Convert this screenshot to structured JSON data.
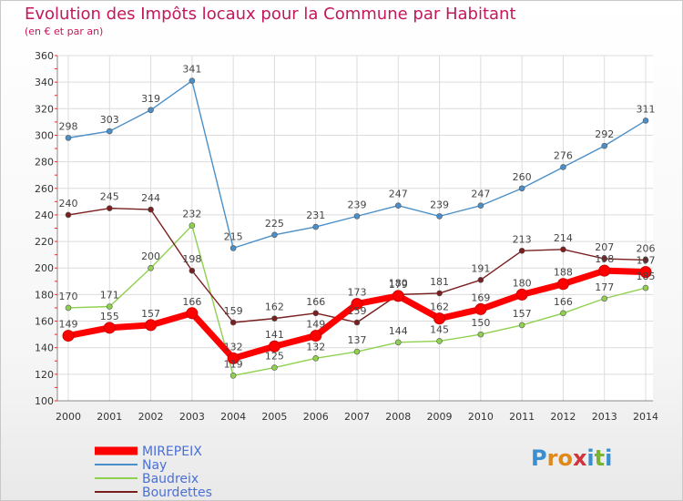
{
  "title": "Evolution des Impôts locaux pour la Commune par Habitant",
  "subtitle": "(en € et par an)",
  "brand": {
    "letters": [
      "P",
      "r",
      "o",
      "x",
      "i",
      "t",
      "i"
    ],
    "colors": [
      "#3a8fd0",
      "#e0891a",
      "#e0891a",
      "#d0343c",
      "#3a8fd0",
      "#7ab332",
      "#3a8fd0"
    ]
  },
  "chart_data": {
    "type": "line",
    "categories": [
      "2000",
      "2001",
      "2002",
      "2003",
      "2004",
      "2005",
      "2006",
      "2007",
      "2008",
      "2009",
      "2010",
      "2011",
      "2012",
      "2013",
      "2014"
    ],
    "ylim": [
      100,
      360
    ],
    "yticks": [
      100,
      120,
      140,
      160,
      180,
      200,
      220,
      240,
      260,
      280,
      300,
      320,
      340,
      360
    ],
    "grid": true,
    "legend_position": "bottom-left",
    "series": [
      {
        "name": "MIREPEIX",
        "color": "#ff0000",
        "values": [
          149,
          155,
          157,
          166,
          132,
          141,
          149,
          173,
          179,
          162,
          169,
          180,
          188,
          198,
          197
        ]
      },
      {
        "name": "Nay",
        "color": "#4a8fc9",
        "values": [
          298,
          303,
          319,
          341,
          215,
          225,
          231,
          239,
          247,
          239,
          247,
          260,
          276,
          292,
          311
        ]
      },
      {
        "name": "Baudreix",
        "color": "#8fd14f",
        "values": [
          170,
          171,
          200,
          232,
          119,
          125,
          132,
          137,
          144,
          145,
          150,
          157,
          166,
          177,
          185
        ]
      },
      {
        "name": "Bourdettes",
        "color": "#7a1f1f",
        "values": [
          240,
          245,
          244,
          198,
          159,
          162,
          166,
          159,
          180,
          181,
          191,
          213,
          214,
          207,
          206
        ]
      }
    ]
  }
}
